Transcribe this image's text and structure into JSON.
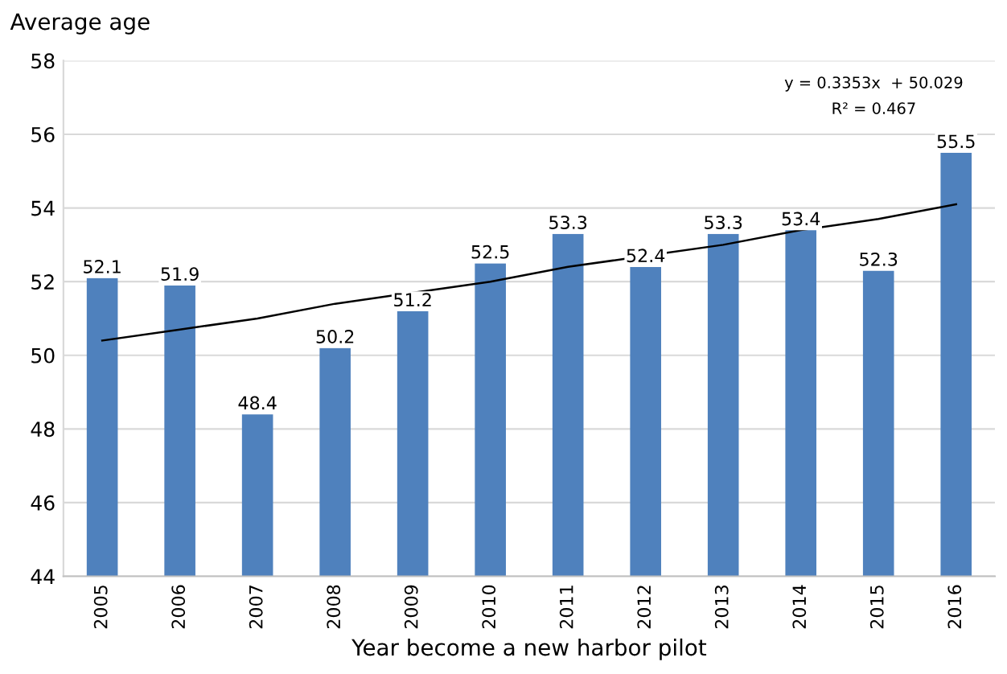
{
  "chart_data": {
    "type": "bar",
    "ylabel": "Average age",
    "xlabel": "Year become a new harbor pilot",
    "categories": [
      "2005",
      "2006",
      "2007",
      "2008",
      "2009",
      "2010",
      "2011",
      "2012",
      "2013",
      "2014",
      "2015",
      "2016"
    ],
    "series": [
      {
        "color": "#4f81bd",
        "values": [
          52.1,
          51.9,
          48.4,
          50.2,
          51.2,
          52.5,
          53.3,
          52.4,
          53.3,
          53.4,
          52.3,
          55.5
        ],
        "value_labels": [
          "52.1",
          "51.9",
          "48.4",
          "50.2",
          "51.2",
          "52.5",
          "53.3",
          "52.4",
          "53.3",
          "53.4",
          "52.3",
          "55.5"
        ]
      },
      {
        "type": "line",
        "color": "#000000",
        "values": [
          50.4,
          50.7,
          51.0,
          51.4,
          51.7,
          52.0,
          52.4,
          52.7,
          53.0,
          53.4,
          53.7,
          54.1
        ]
      }
    ],
    "ylim": [
      44,
      58
    ],
    "yticks": [
      44,
      46,
      48,
      50,
      52,
      54,
      56,
      58
    ],
    "grid": "y",
    "annotations": [
      "y = 0.3353x  + 50.029",
      "R² = 0.467"
    ]
  }
}
